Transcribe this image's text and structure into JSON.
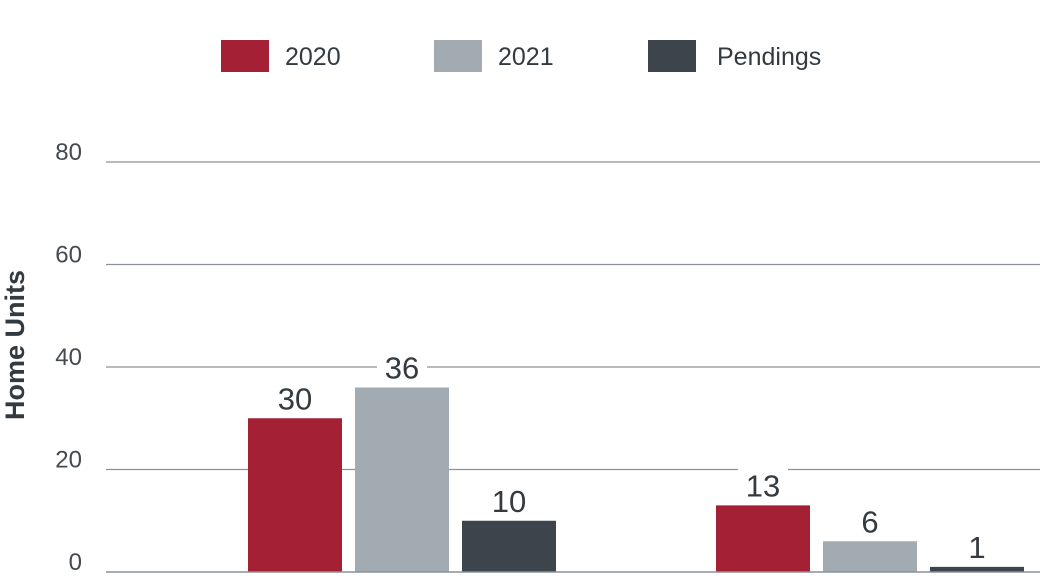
{
  "chart_data": {
    "type": "bar",
    "title": "",
    "xlabel": "",
    "ylabel": "Home Units",
    "ylim": [
      0,
      80
    ],
    "yticks": [
      0,
      20,
      40,
      60,
      80
    ],
    "grid": true,
    "legend_position": "top",
    "categories": [
      "",
      ""
    ],
    "series": [
      {
        "name": "2020",
        "color": "#a32035",
        "values": [
          30,
          13
        ]
      },
      {
        "name": "2021",
        "color": "#a2abb1",
        "values": [
          36,
          6
        ]
      },
      {
        "name": "Pendings",
        "color": "#3d444b",
        "values": [
          10,
          1
        ]
      }
    ]
  }
}
